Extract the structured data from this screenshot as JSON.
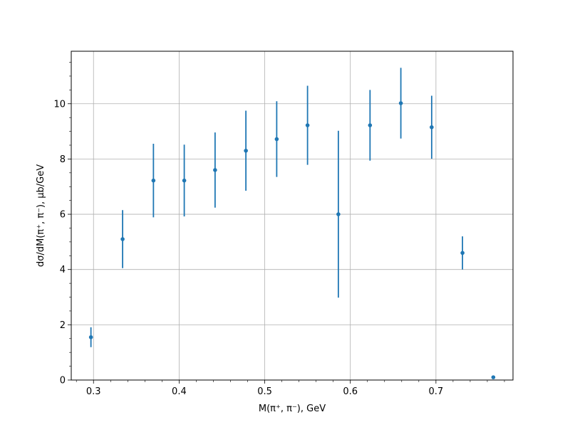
{
  "chart_data": {
    "type": "scatter",
    "title": "",
    "xlabel": "M(π⁺, π⁻), GeV",
    "ylabel": "dσ/dM(π⁺, π⁻), μb/GeV",
    "xlim": [
      0.274,
      0.79
    ],
    "ylim": [
      0,
      11.9
    ],
    "x_ticks": [
      0.3,
      0.4,
      0.5,
      0.6,
      0.7
    ],
    "x_tick_labels": [
      "0.3",
      "0.4",
      "0.5",
      "0.6",
      "0.7"
    ],
    "y_ticks": [
      0,
      2,
      4,
      6,
      8,
      10
    ],
    "y_tick_labels": [
      "0",
      "2",
      "4",
      "6",
      "8",
      "10"
    ],
    "grid": true,
    "legend": false,
    "marker_color": "#1f77b4",
    "series": [
      {
        "x": [
          0.297,
          0.334,
          0.37,
          0.406,
          0.442,
          0.478,
          0.514,
          0.55,
          0.586,
          0.623,
          0.659,
          0.695,
          0.731,
          0.767
        ],
        "y": [
          1.55,
          5.1,
          7.22,
          7.22,
          7.6,
          8.3,
          8.72,
          9.22,
          6.0,
          9.22,
          10.02,
          9.15,
          4.6,
          0.1
        ],
        "yerr": [
          0.36,
          1.05,
          1.33,
          1.3,
          1.36,
          1.45,
          1.37,
          1.43,
          3.02,
          1.28,
          1.28,
          1.14,
          0.6,
          0.0
        ]
      }
    ]
  }
}
